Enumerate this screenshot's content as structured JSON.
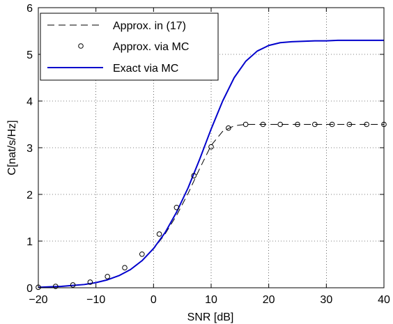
{
  "chart_data": {
    "type": "line",
    "xlabel": "SNR [dB]",
    "ylabel": "C[nat/s/Hz]",
    "xlim": [
      -20,
      40
    ],
    "ylim": [
      0,
      6
    ],
    "x_ticks": [
      -20,
      -10,
      0,
      10,
      20,
      30,
      40
    ],
    "y_ticks": [
      0,
      1,
      2,
      3,
      4,
      5,
      6
    ],
    "x_tick_labels": [
      "−20",
      "−10",
      "0",
      "10",
      "20",
      "30",
      "40"
    ],
    "y_tick_labels": [
      "0",
      "1",
      "2",
      "3",
      "4",
      "5",
      "6"
    ],
    "grid": true,
    "legend_position": "top-left",
    "series": [
      {
        "name": "Approx. in (17)",
        "style": "dashed",
        "color": "#000000",
        "x": [
          -20,
          -18,
          -16,
          -14,
          -12,
          -10,
          -8,
          -6,
          -4,
          -2,
          0,
          2,
          4,
          6,
          8,
          10,
          12,
          14,
          16,
          20,
          25,
          30,
          35,
          40
        ],
        "y": [
          0.01,
          0.02,
          0.03,
          0.05,
          0.07,
          0.11,
          0.17,
          0.26,
          0.39,
          0.58,
          0.83,
          1.15,
          1.55,
          2.02,
          2.55,
          3.05,
          3.35,
          3.47,
          3.5,
          3.5,
          3.5,
          3.5,
          3.5,
          3.5
        ]
      },
      {
        "name": "Approx. via MC",
        "style": "markers",
        "marker": "circle",
        "color": "#000000",
        "x": [
          -20,
          -17,
          -14,
          -11,
          -8,
          -5,
          -2,
          1,
          4,
          7,
          10,
          13,
          16,
          19,
          22,
          25,
          28,
          31,
          34,
          37,
          40
        ],
        "y": [
          0.01,
          0.03,
          0.06,
          0.12,
          0.24,
          0.43,
          0.72,
          1.15,
          1.72,
          2.4,
          3.02,
          3.42,
          3.5,
          3.5,
          3.5,
          3.5,
          3.5,
          3.5,
          3.5,
          3.5,
          3.5
        ]
      },
      {
        "name": "Exact via MC",
        "style": "solid",
        "color": "#0000cc",
        "x": [
          -20,
          -18,
          -16,
          -14,
          -12,
          -10,
          -8,
          -6,
          -4,
          -2,
          0,
          2,
          4,
          6,
          8,
          10,
          12,
          14,
          16,
          18,
          20,
          22,
          24,
          26,
          28,
          30,
          32,
          35,
          40
        ],
        "y": [
          0.01,
          0.02,
          0.03,
          0.05,
          0.07,
          0.11,
          0.17,
          0.26,
          0.39,
          0.58,
          0.84,
          1.18,
          1.62,
          2.14,
          2.75,
          3.4,
          4.0,
          4.5,
          4.85,
          5.07,
          5.19,
          5.25,
          5.27,
          5.28,
          5.29,
          5.29,
          5.3,
          5.3,
          5.3
        ]
      }
    ]
  }
}
